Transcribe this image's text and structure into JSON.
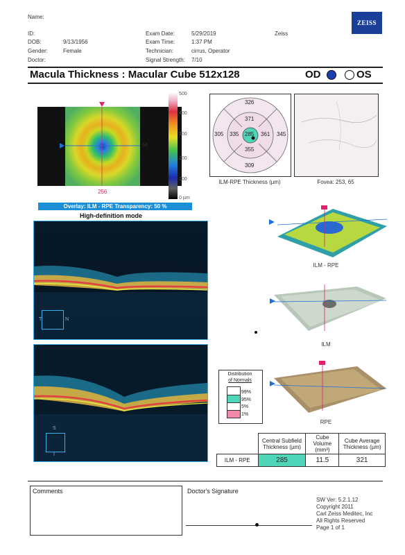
{
  "header": {
    "name_label": "Name:",
    "id_label": "ID:",
    "dob_label": "DOB:",
    "dob_value": "9/13/1956",
    "gender_label": "Gender:",
    "gender_value": "Female",
    "doctor_label": "Doctor:",
    "exam_date_label": "Exam Date:",
    "exam_date_value": "5/29/2019",
    "exam_time_label": "Exam Time:",
    "exam_time_value": "1:37 PM",
    "technician_label": "Technician:",
    "technician_value": "cirrus, Operator",
    "signal_label": "Signal Strength:",
    "signal_value": "7/10",
    "device_value": "Zeiss",
    "logo_text": "ZEISS"
  },
  "report": {
    "title": "Macula Thickness : Macular Cube 512x128",
    "od_label": "OD",
    "os_label": "OS",
    "selected_eye": "OD"
  },
  "thickness_map": {
    "scale_labels": [
      "500",
      "400",
      "300",
      "200",
      "100",
      "0 µm"
    ],
    "marker_right": "64",
    "marker_bottom": "256",
    "overlay_text": "Overlay: ILM - RPE  Transparency: 50 %"
  },
  "etdrs": {
    "values": {
      "outer_superior": "326",
      "inner_superior": "371",
      "outer_nasal_left": "305",
      "inner_left": "335",
      "center": "285",
      "inner_right": "361",
      "outer_right": "345",
      "inner_inferior": "355",
      "outer_inferior": "309"
    },
    "caption": "ILM-RPE Thickness (µm)"
  },
  "fundus": {
    "caption": "Fovea: 253, 65"
  },
  "bscan": {
    "mode_label": "High-definition mode",
    "orient_t": "T",
    "orient_n": "N",
    "orient_s": "S",
    "orient_i": "I"
  },
  "surfaces": {
    "ilm_rpe_caption": "ILM - RPE",
    "ilm_caption": "ILM",
    "rpe_caption": "RPE"
  },
  "normals": {
    "title_line1": "Distribution",
    "title_line2": "of Normals",
    "p99": "99%",
    "p95": "95%",
    "p5": "5%",
    "p1": "1%",
    "colors": {
      "p99": "#ffffff",
      "p95": "#4fd6b8",
      "p5": "#ffffff",
      "p1": "#f08aa8"
    }
  },
  "metrics": {
    "col1": "Central Subfield Thickness (µm)",
    "col2": "Cube Volume (mm³)",
    "col3": "Cube Average Thickness (µm)",
    "row_label": "ILM - RPE",
    "csf": "285",
    "volume": "11.5",
    "average": "321"
  },
  "footer": {
    "comments_label": "Comments",
    "signature_label": "Doctor's Signature",
    "sw_version": "SW Ver: 5.2.1.12",
    "copyright": "Copyright 2011",
    "company": "Carl Zeiss Meditec, Inc",
    "rights": "All Rights Reserved",
    "page": "Page 1 of 1"
  }
}
